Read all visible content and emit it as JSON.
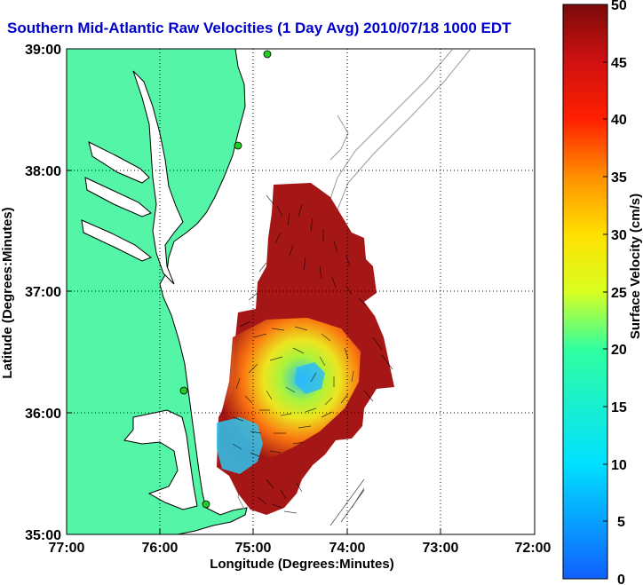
{
  "title": "Southern Mid-Atlantic Raw Velocities (1 Day Avg) 2010/07/18 1000 EDT",
  "x_axis": {
    "label": "Longitude (Degrees:Minutes)",
    "ticks": [
      "77:00",
      "76:00",
      "75:00",
      "74:00",
      "73:00",
      "72:00"
    ]
  },
  "y_axis": {
    "label": "Latitude (Degrees:Minutes)",
    "ticks": [
      "39:00",
      "38:00",
      "37:00",
      "36:00",
      "35:00"
    ]
  },
  "colorbar": {
    "label": "Surface Velocity (cm/s)",
    "ticks": [
      "50",
      "45",
      "40",
      "35",
      "30",
      "25",
      "20",
      "15",
      "10",
      "5",
      "0"
    ]
  },
  "colors": {
    "land": "#55f5a8",
    "coastline": "#000000",
    "bathymetry": "#999999",
    "title": "#0000cc",
    "stations": "#22cc22"
  },
  "map": {
    "lon_range": [
      "77:00",
      "72:00"
    ],
    "lat_range": [
      "35:00",
      "39:00"
    ],
    "grid": true,
    "legend_placement": "right"
  }
}
